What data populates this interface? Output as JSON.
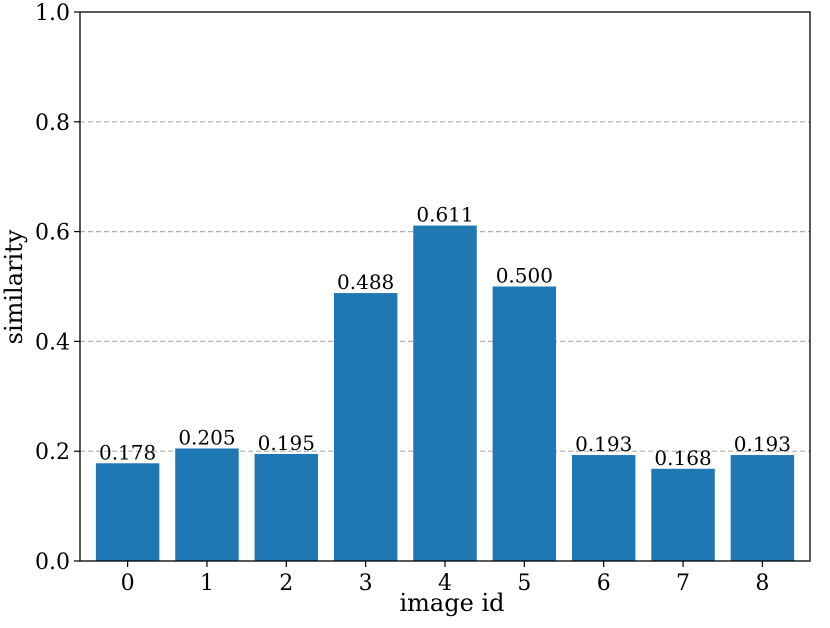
{
  "chart_data": {
    "type": "bar",
    "title": "",
    "xlabel": "image id",
    "ylabel": "similarity",
    "categories": [
      "0",
      "1",
      "2",
      "3",
      "4",
      "5",
      "6",
      "7",
      "8"
    ],
    "values": [
      0.178,
      0.205,
      0.195,
      0.488,
      0.611,
      0.5,
      0.193,
      0.168,
      0.193
    ],
    "value_labels": [
      "0.178",
      "0.205",
      "0.195",
      "0.488",
      "0.611",
      "0.500",
      "0.193",
      "0.168",
      "0.193"
    ],
    "ylim": [
      0,
      1.0
    ],
    "yticks": [
      0.0,
      0.2,
      0.4,
      0.6,
      0.8,
      1.0
    ],
    "ytick_labels": [
      "0.0",
      "0.2",
      "0.4",
      "0.6",
      "0.8",
      "1.0"
    ],
    "grid": "horizontal dashed",
    "bar_color": "#1f77b4",
    "grid_color": "#b0b0b0",
    "legend": "none"
  }
}
